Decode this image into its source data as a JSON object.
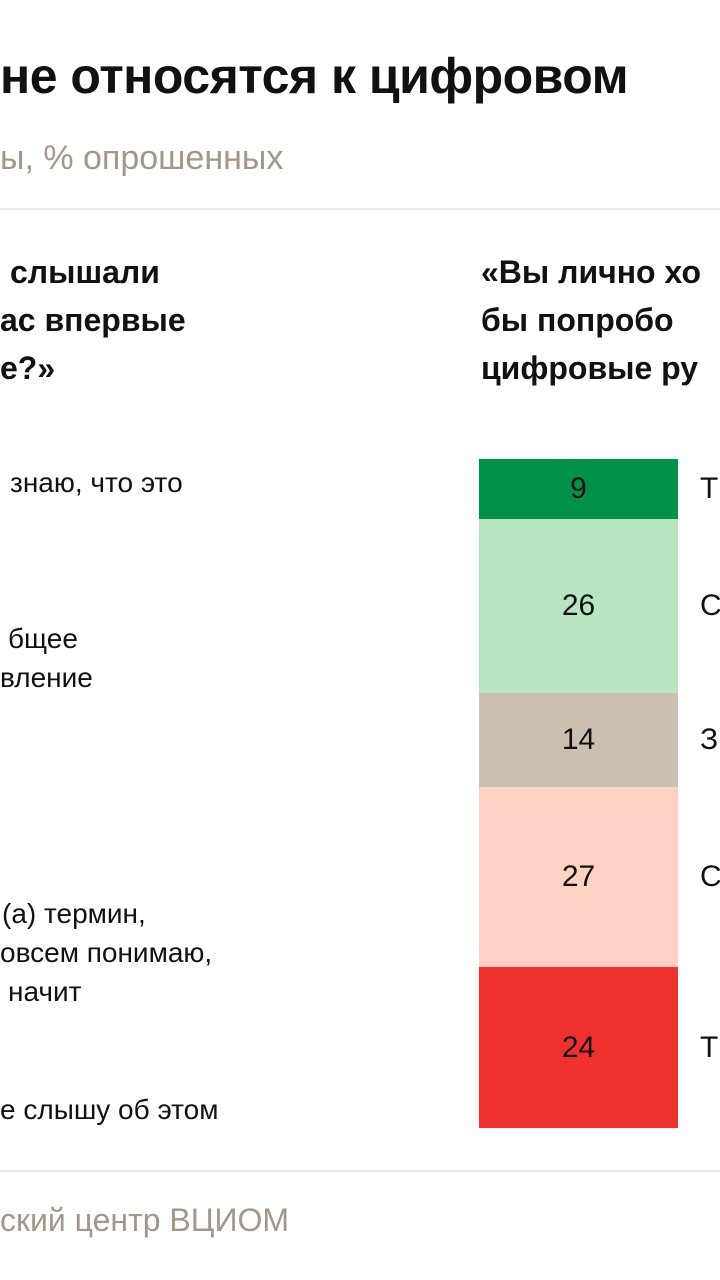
{
  "header": {
    "title": "не относятся к цифровом",
    "subtitle": "ы, % опрошенных"
  },
  "left": {
    "question_lines": [
      "слышали",
      "ас впервые",
      "е?»"
    ],
    "answers": [
      {
        "lines": [
          "знаю, что это"
        ]
      },
      {
        "lines": [
          "бщее",
          "вление"
        ]
      },
      {
        "lines": [
          "(а) термин,",
          "овсем понимаю,",
          "начит"
        ]
      },
      {
        "lines": [
          "е слышу об этом"
        ]
      }
    ]
  },
  "right": {
    "question_lines": [
      "«Вы лично хо",
      "бы попробо",
      "цифровые ру"
    ]
  },
  "chart_data": {
    "type": "bar",
    "orientation": "stacked-vertical",
    "values": [
      9,
      26,
      14,
      27,
      24
    ],
    "colors": [
      "#00914b",
      "#b8e4c2",
      "#cbbfb2",
      "#fdd2c4",
      "#ef312d"
    ],
    "labels": [
      "Т",
      "С",
      "З",
      "С",
      "Т"
    ]
  },
  "footer": {
    "source": "ский центр ВЦИОМ"
  }
}
